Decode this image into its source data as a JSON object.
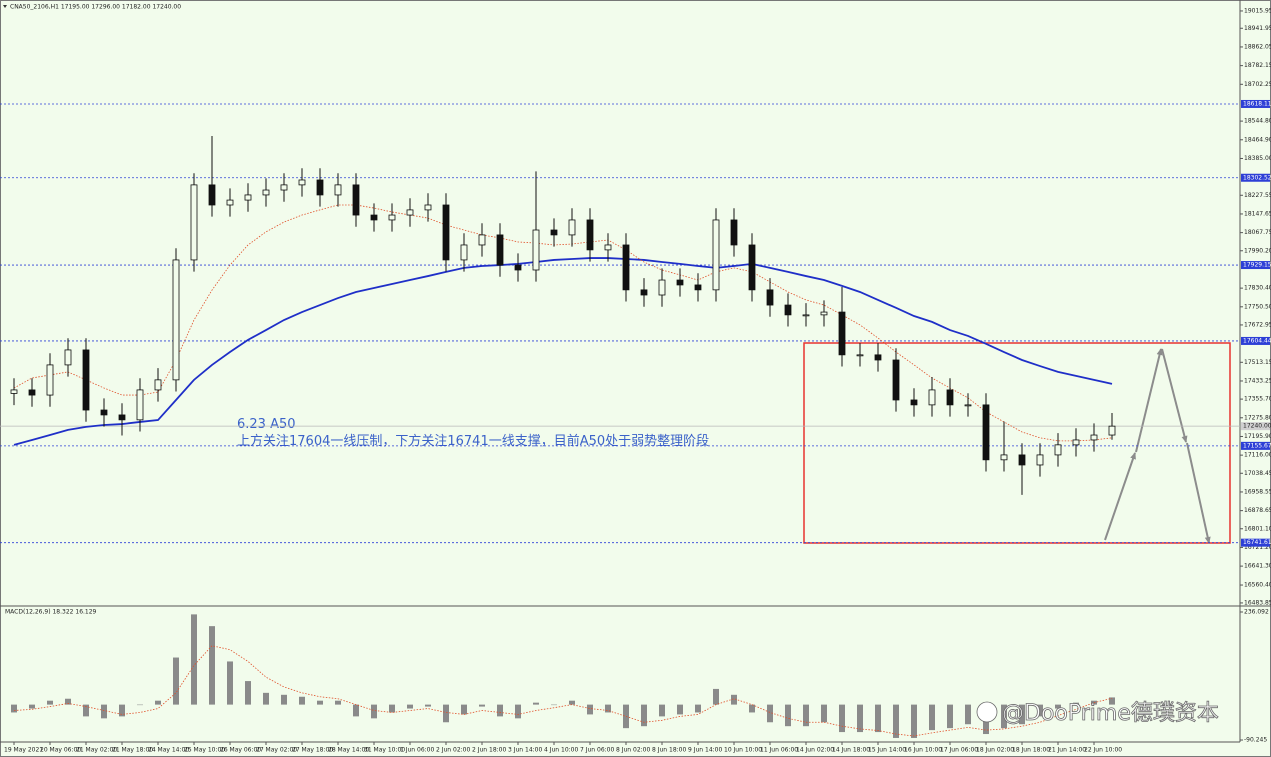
{
  "chart_data": {
    "type": "candlestick",
    "title": "CNA50_2106,H1  17195.00 17296.00 17182.00 17240.00",
    "annotation": [
      "6.23 A50",
      "上方关注17604一线压制，下方关注16741一线支撑，目前A50处于弱势整理阶段"
    ],
    "watermark": "@DooPrime德璞资本",
    "background": "#f2fcec",
    "categories": [
      "19 May 2021",
      null,
      "20 May 06:00",
      null,
      "21 May 02:00",
      null,
      "21 May 18:00",
      null,
      "24 May 14:00",
      null,
      "25 May 10:00",
      null,
      "26 May 06:00",
      null,
      "27 May 02:00",
      null,
      "27 May 18:00",
      null,
      "28 May 14:00",
      null,
      "31 May 10:00",
      null,
      "1 Jun 06:00",
      null,
      "2 Jun 02:00",
      null,
      "2 Jun 18:00",
      null,
      "3 Jun 14:00",
      null,
      "4 Jun 10:00",
      null,
      "7 Jun 06:00",
      null,
      "8 Jun 02:00",
      null,
      "8 Jun 18:00",
      null,
      "9 Jun 14:00",
      null,
      "10 Jun 10:00",
      null,
      "11 Jun 06:00",
      null,
      "14 Jun 02:00",
      null,
      "14 Jun 18:00",
      null,
      "15 Jun 14:00",
      null,
      "16 Jun 10:00",
      null,
      "17 Jun 06:00",
      null,
      "18 Jun 02:00",
      null,
      "18 Jun 18:00",
      null,
      "21 Jun 14:00",
      null,
      "22 Jun 10:00",
      null
    ],
    "candles": {
      "color": "#111111",
      "open": [
        17380,
        17395,
        17373,
        17502,
        17566,
        17309,
        17288,
        17267,
        17395,
        17438,
        17951,
        18272,
        18186,
        18207,
        18229,
        18250,
        18272,
        18293,
        18229,
        18272,
        18143,
        18122,
        18143,
        18165,
        18186,
        17951,
        18015,
        18058,
        17929,
        17908,
        18079,
        18058,
        18122,
        17994,
        18015,
        17823,
        17801,
        17865,
        17844,
        17823,
        18122,
        18015,
        17823,
        17758,
        17716,
        17716,
        17728,
        17545,
        17545,
        17523,
        17352,
        17331,
        17395,
        17331,
        17331,
        17096,
        17117,
        17074,
        17117,
        17160,
        17181,
        17202
      ],
      "high": [
        17445,
        17445,
        17552,
        17616,
        17616,
        17359,
        17338,
        17445,
        17488,
        18001,
        18322,
        18481,
        18257,
        18279,
        18300,
        18322,
        18343,
        18343,
        18322,
        18322,
        18193,
        18193,
        18215,
        18236,
        18236,
        18065,
        18108,
        18108,
        17979,
        18330,
        18129,
        18172,
        18172,
        18065,
        18065,
        17873,
        17915,
        17915,
        17894,
        18172,
        18172,
        18065,
        17873,
        17808,
        17766,
        17778,
        17835,
        17595,
        17595,
        17573,
        17402,
        17450,
        17445,
        17381,
        17381,
        17260,
        17167,
        17167,
        17210,
        17231,
        17252,
        17296
      ],
      "low": [
        17330,
        17323,
        17323,
        17452,
        17259,
        17238,
        17200,
        17217,
        17345,
        17388,
        17901,
        18136,
        18136,
        18157,
        18179,
        18200,
        18222,
        18179,
        18179,
        18093,
        18072,
        18072,
        18093,
        18115,
        17901,
        17901,
        17965,
        17879,
        17858,
        17858,
        18008,
        18008,
        17944,
        17944,
        17773,
        17751,
        17751,
        17794,
        17773,
        17773,
        17965,
        17773,
        17708,
        17666,
        17666,
        17666,
        17495,
        17495,
        17473,
        17302,
        17281,
        17281,
        17281,
        17281,
        17046,
        17046,
        16946,
        17024,
        17067,
        17110,
        17131,
        17182
      ],
      "close": [
        17395,
        17373,
        17502,
        17566,
        17309,
        17288,
        17267,
        17395,
        17438,
        17951,
        18272,
        18186,
        18207,
        18229,
        18250,
        18272,
        18293,
        18229,
        18272,
        18143,
        18122,
        18143,
        18165,
        18186,
        17951,
        18015,
        18058,
        17929,
        17908,
        18079,
        18058,
        18122,
        17994,
        18015,
        17823,
        17801,
        17865,
        17844,
        17823,
        18122,
        18015,
        17823,
        17758,
        17716,
        17716,
        17728,
        17545,
        17545,
        17523,
        17352,
        17331,
        17395,
        17331,
        17331,
        17096,
        17117,
        17074,
        17117,
        17160,
        17181,
        17202,
        17240
      ]
    },
    "ma_slow": {
      "color": "#1f2fc8",
      "values": [
        17160,
        17181,
        17202,
        17224,
        17237,
        17245,
        17249,
        17258,
        17266,
        17352,
        17438,
        17502,
        17557,
        17609,
        17651,
        17694,
        17728,
        17758,
        17788,
        17814,
        17831,
        17848,
        17865,
        17882,
        17900,
        17917,
        17925,
        17929,
        17934,
        17942,
        17951,
        17955,
        17959,
        17959,
        17955,
        17951,
        17942,
        17934,
        17925,
        17917,
        17925,
        17934,
        17917,
        17900,
        17882,
        17865,
        17840,
        17814,
        17780,
        17746,
        17711,
        17686,
        17651,
        17626,
        17592,
        17557,
        17523,
        17497,
        17472,
        17455,
        17438,
        17421
      ]
    },
    "ma_fast": {
      "color": "#e0502a",
      "values": [
        17403,
        17446,
        17459,
        17472,
        17438,
        17403,
        17373,
        17373,
        17386,
        17523,
        17694,
        17822,
        17929,
        18015,
        18071,
        18113,
        18143,
        18165,
        18186,
        18186,
        18173,
        18156,
        18143,
        18130,
        18100,
        18079,
        18058,
        18045,
        18028,
        18023,
        18015,
        18019,
        18028,
        18036,
        17994,
        17942,
        17908,
        17887,
        17865,
        17900,
        17917,
        17900,
        17857,
        17814,
        17780,
        17758,
        17716,
        17673,
        17617,
        17557,
        17502,
        17446,
        17403,
        17361,
        17301,
        17258,
        17215,
        17190,
        17177,
        17177,
        17181,
        17190
      ]
    },
    "ylim": [
      16475,
      19050
    ],
    "yticks": [
      19015.95,
      18941.95,
      18862.05,
      18782.15,
      18702.25,
      {
        "value": 18544.8,
        "label": "18544.80"
      },
      {
        "value": 18464.9,
        "label": "18464.90"
      },
      {
        "value": 18385,
        "label": "18385.00"
      },
      18227.55,
      18147.65,
      18067.75,
      {
        "value": 17990.2,
        "label": "17990.20"
      },
      {
        "value": 17830.4,
        "label": "17830.40"
      },
      {
        "value": 17750.5,
        "label": "17750.50"
      },
      17672.95,
      17513.15,
      17433.25,
      {
        "value": 17355.7,
        "label": "17355.70"
      },
      {
        "value": 17275.8,
        "label": "17275.80"
      },
      {
        "value": 17195.9,
        "label": "17195.90"
      },
      {
        "value": 17116,
        "label": "17116.00"
      },
      17038.45,
      16958.55,
      16878.65,
      {
        "value": 16801.1,
        "label": "16801.10"
      },
      {
        "value": 16721.2,
        "label": "16721.20"
      },
      {
        "value": 16641.3,
        "label": "16641.30"
      },
      {
        "value": 16560.4,
        "label": "16560.40"
      },
      16483.85
    ],
    "levels": {
      "color": "#2d3fd6",
      "values": [
        18618.11,
        18302.52,
        17929.15,
        17604.44,
        17155.67,
        16741.61
      ]
    },
    "current": {
      "value": 17240,
      "label": "17240.00"
    },
    "macd": {
      "label": "MACD(12,26,9) 18.322 16.129",
      "hist_color": "#8a8a8a",
      "signal_color": "#e0502a",
      "hist": [
        -20,
        -10,
        10,
        15,
        -30,
        -35,
        -30,
        0,
        10,
        120,
        230,
        200,
        110,
        60,
        30,
        25,
        20,
        10,
        10,
        -30,
        -35,
        -20,
        -10,
        -5,
        -45,
        -25,
        -5,
        -30,
        -35,
        5,
        0,
        10,
        -25,
        -20,
        -60,
        -55,
        -30,
        -25,
        -20,
        40,
        25,
        -20,
        -45,
        -55,
        -55,
        -45,
        -70,
        -70,
        -70,
        -85,
        -85,
        -65,
        -60,
        -50,
        -75,
        -60,
        -50,
        -30,
        -10,
        5,
        10,
        18.322
      ],
      "signal": [
        -15,
        -12,
        -5,
        3,
        -5,
        -15,
        -25,
        -20,
        -10,
        30,
        100,
        150,
        140,
        110,
        70,
        45,
        30,
        20,
        15,
        0,
        -15,
        -20,
        -15,
        -10,
        -20,
        -25,
        -15,
        -20,
        -25,
        -15,
        -8,
        0,
        -10,
        -15,
        -30,
        -45,
        -40,
        -30,
        -25,
        0,
        15,
        0,
        -20,
        -35,
        -45,
        -45,
        -55,
        -62,
        -66,
        -75,
        -80,
        -72,
        -65,
        -58,
        -65,
        -62,
        -55,
        -45,
        -28,
        -12,
        5,
        16.129
      ],
      "ylim": [
        -95.3,
        248.8
      ],
      "yticks": [
        236.092,
        -90.245
      ]
    }
  }
}
